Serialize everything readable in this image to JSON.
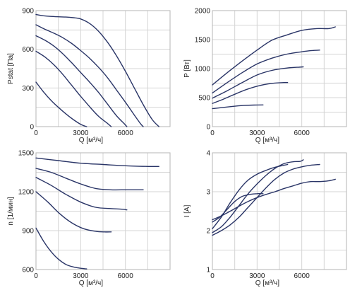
{
  "chart_data": [
    {
      "type": "line",
      "xlabel": "Q [м³/ч]",
      "ylabel": "Pstat [Па]",
      "xlim": [
        0,
        9000
      ],
      "ylim": [
        0,
        900
      ],
      "xticks": [
        0,
        3000,
        6000
      ],
      "yticks": [
        0,
        300,
        600,
        900
      ],
      "grid": true,
      "series": [
        {
          "x": [
            0,
            500,
            1000,
            1500,
            2000,
            2500,
            3000,
            3400
          ],
          "y": [
            345,
            270,
            205,
            150,
            100,
            55,
            18,
            0
          ]
        },
        {
          "x": [
            0,
            600,
            1200,
            1800,
            2400,
            3000,
            3600,
            4200,
            4800,
            5050
          ],
          "y": [
            585,
            540,
            480,
            405,
            320,
            235,
            155,
            80,
            25,
            0
          ]
        },
        {
          "x": [
            0,
            600,
            1200,
            1800,
            2400,
            3000,
            3600,
            4200,
            4800,
            5400,
            5900,
            6100
          ],
          "y": [
            705,
            670,
            625,
            565,
            495,
            420,
            345,
            265,
            175,
            85,
            25,
            0
          ]
        },
        {
          "x": [
            0,
            600,
            1200,
            1800,
            2400,
            3000,
            3600,
            4200,
            4800,
            5400,
            6000,
            6600,
            7000,
            7200
          ],
          "y": [
            790,
            755,
            725,
            690,
            645,
            590,
            530,
            460,
            380,
            285,
            190,
            90,
            25,
            0
          ]
        },
        {
          "x": [
            0,
            500,
            1000,
            1500,
            2000,
            2500,
            3000,
            3600,
            4200,
            4800,
            5400,
            6000,
            6600,
            7200,
            7800,
            8250
          ],
          "y": [
            870,
            860,
            855,
            852,
            850,
            845,
            835,
            800,
            740,
            655,
            550,
            430,
            300,
            170,
            55,
            0
          ]
        }
      ]
    },
    {
      "type": "line",
      "xlabel": "Q [м³/ч]",
      "ylabel": "P [Вт]",
      "xlim": [
        0,
        9000
      ],
      "ylim": [
        0,
        2000
      ],
      "xticks": [
        0,
        3000,
        6000
      ],
      "yticks": [
        0,
        500,
        1000,
        1500,
        2000
      ],
      "grid": true,
      "series": [
        {
          "x": [
            0,
            700,
            1400,
            2100,
            2800,
            3400
          ],
          "y": [
            310,
            330,
            350,
            365,
            372,
            375
          ]
        },
        {
          "x": [
            0,
            800,
            1600,
            2400,
            3200,
            4000,
            4800,
            5050
          ],
          "y": [
            400,
            480,
            570,
            650,
            710,
            745,
            760,
            760
          ]
        },
        {
          "x": [
            0,
            1000,
            2000,
            3000,
            4000,
            5000,
            5800,
            6100
          ],
          "y": [
            490,
            620,
            760,
            890,
            970,
            1010,
            1025,
            1030
          ]
        },
        {
          "x": [
            0,
            1000,
            2000,
            3000,
            4000,
            5000,
            6000,
            6600,
            7200
          ],
          "y": [
            580,
            760,
            930,
            1080,
            1180,
            1250,
            1290,
            1310,
            1320
          ]
        },
        {
          "x": [
            0,
            1000,
            2000,
            3000,
            4000,
            5000,
            6000,
            7000,
            7800,
            8250
          ],
          "y": [
            720,
            930,
            1130,
            1320,
            1490,
            1580,
            1660,
            1690,
            1690,
            1720
          ]
        }
      ]
    },
    {
      "type": "line",
      "xlabel": "Q [м³/ч]",
      "ylabel": "n [1/мин]",
      "xlim": [
        0,
        9000
      ],
      "ylim": [
        600,
        1500
      ],
      "xticks": [
        0,
        3000,
        6000
      ],
      "yticks": [
        600,
        900,
        1200,
        1500
      ],
      "grid": true,
      "series": [
        {
          "x": [
            0,
            500,
            1000,
            1500,
            2000,
            2500,
            3000,
            3400
          ],
          "y": [
            920,
            820,
            740,
            680,
            640,
            620,
            610,
            605
          ]
        },
        {
          "x": [
            0,
            800,
            1600,
            2400,
            3200,
            4000,
            4600,
            5050
          ],
          "y": [
            1200,
            1120,
            1030,
            960,
            915,
            895,
            890,
            890
          ]
        },
        {
          "x": [
            0,
            1000,
            2000,
            3000,
            4000,
            5000,
            5800,
            6100
          ],
          "y": [
            1310,
            1250,
            1180,
            1120,
            1080,
            1070,
            1065,
            1060
          ]
        },
        {
          "x": [
            0,
            1000,
            2000,
            3000,
            4000,
            5000,
            6000,
            6600,
            7200
          ],
          "y": [
            1380,
            1350,
            1305,
            1260,
            1225,
            1215,
            1215,
            1215,
            1215
          ]
        },
        {
          "x": [
            0,
            1500,
            3000,
            4500,
            6000,
            7500,
            8250
          ],
          "y": [
            1460,
            1440,
            1420,
            1410,
            1400,
            1395,
            1395
          ]
        }
      ]
    },
    {
      "type": "line",
      "xlabel": "Q [м³/ч]",
      "ylabel": "I [A]",
      "xlim": [
        0,
        9000
      ],
      "ylim": [
        1,
        4
      ],
      "xticks": [
        0,
        3000,
        6000
      ],
      "yticks": [
        1,
        2,
        3,
        4
      ],
      "grid": true,
      "series": [
        {
          "x": [
            0,
            500,
            1000,
            1500,
            2000,
            2500,
            3000,
            3400
          ],
          "y": [
            2.22,
            2.35,
            2.55,
            2.75,
            2.88,
            2.93,
            2.95,
            2.95
          ]
        },
        {
          "x": [
            0,
            600,
            1200,
            1800,
            2400,
            3000,
            3600,
            4200,
            4800,
            5050
          ],
          "y": [
            2.05,
            2.35,
            2.72,
            3.05,
            3.3,
            3.45,
            3.55,
            3.63,
            3.68,
            3.7
          ]
        },
        {
          "x": [
            0,
            600,
            1200,
            1800,
            2400,
            3000,
            3600,
            4200,
            4800,
            5400,
            5900,
            6100
          ],
          "y": [
            1.95,
            2.1,
            2.35,
            2.65,
            2.95,
            3.2,
            3.42,
            3.6,
            3.72,
            3.77,
            3.78,
            3.82
          ]
        },
        {
          "x": [
            0,
            600,
            1200,
            1800,
            2400,
            3000,
            3600,
            4200,
            4800,
            5400,
            6000,
            6600,
            7200
          ],
          "y": [
            1.88,
            2.0,
            2.15,
            2.35,
            2.6,
            2.85,
            3.1,
            3.32,
            3.48,
            3.58,
            3.64,
            3.68,
            3.7
          ]
        },
        {
          "x": [
            0,
            600,
            1200,
            1800,
            2400,
            3000,
            3600,
            4200,
            4800,
            5400,
            6000,
            6600,
            7200,
            7800,
            8250
          ],
          "y": [
            2.28,
            2.38,
            2.5,
            2.63,
            2.75,
            2.85,
            2.93,
            3.0,
            3.08,
            3.15,
            3.22,
            3.26,
            3.26,
            3.28,
            3.32
          ]
        }
      ]
    }
  ]
}
